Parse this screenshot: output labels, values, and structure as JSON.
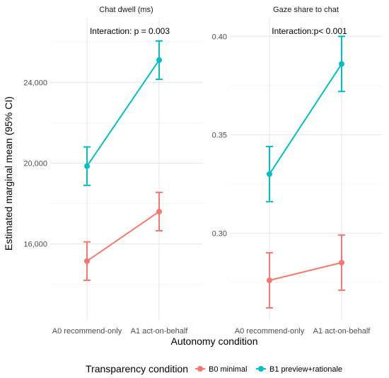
{
  "chart_data": {
    "type": "line",
    "ylabel": "Estimated marginal mean (95% CI)",
    "xlabel": "Autonomy condition",
    "categories": [
      "A0 recommend-only",
      "A1 act-on-behalf"
    ],
    "legend": {
      "title": "Transparency condition",
      "placement": "bottom",
      "entries": [
        {
          "name": "B0 minimal",
          "color": "#F8766D"
        },
        {
          "name": "B1 preview+rationale",
          "color": "#00BFC4"
        }
      ]
    },
    "grid": true,
    "panels": [
      {
        "title": "Chat dwell (ms)",
        "annotation": "Interaction: p = 0.003",
        "ylim": [
          12200,
          27200
        ],
        "yticks": [
          16000,
          20000,
          24000
        ],
        "ytick_labels": [
          "16,000",
          "20,000",
          "24,000"
        ],
        "series": [
          {
            "name": "B0 minimal",
            "color": "#F8766D",
            "values": [
              15150,
              17600
            ],
            "lower": [
              14200,
              16650
            ],
            "upper": [
              16100,
              18550
            ]
          },
          {
            "name": "B1 preview+rationale",
            "color": "#00BFC4",
            "values": [
              19850,
              25100
            ],
            "lower": [
              18900,
              24150
            ],
            "upper": [
              20800,
              26050
            ]
          }
        ]
      },
      {
        "title": "Gaze share to chat",
        "annotation": "Interaction:p< 0.001",
        "ylim": [
          0.2555,
          0.4095
        ],
        "yticks": [
          0.3,
          0.35,
          0.4
        ],
        "ytick_labels": [
          "0.30",
          "0.35",
          "0.40"
        ],
        "series": [
          {
            "name": "B0 minimal",
            "color": "#F8766D",
            "values": [
              0.276,
              0.285
            ],
            "lower": [
              0.262,
              0.271
            ],
            "upper": [
              0.29,
              0.299
            ]
          },
          {
            "name": "B1 preview+rationale",
            "color": "#00BFC4",
            "values": [
              0.33,
              0.386
            ],
            "lower": [
              0.316,
              0.372
            ],
            "upper": [
              0.344,
              0.4
            ]
          }
        ]
      }
    ]
  }
}
